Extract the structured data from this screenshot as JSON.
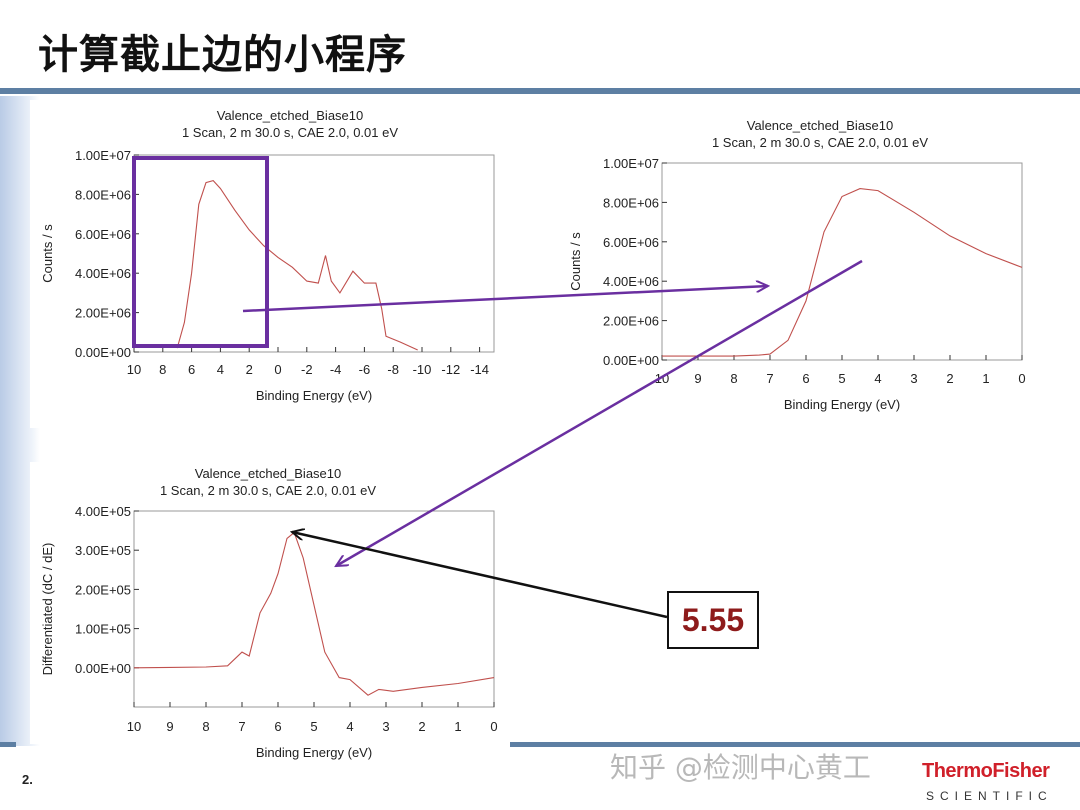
{
  "slide": {
    "title": "计算截止边的小程序",
    "page_number": "2.",
    "watermark": "知乎 @检测中心黄工",
    "logo_line1": "ThermoFisher",
    "logo_line2": "SCIENTIFIC",
    "callout_value": "5.55",
    "colors": {
      "rule": "#5d7fa3",
      "annotation_purple": "#6a2fa0",
      "curve": "#c0504d",
      "callout_text": "#8e1b1b"
    }
  },
  "chart_data": [
    {
      "type": "line",
      "title": "Valence_etched_Biase10",
      "subtitle": "1 Scan,  2 m 30.0 s,  CAE 2.0,  0.01 eV",
      "xlabel": "Binding Energy (eV)",
      "ylabel": "Counts / s",
      "xlim": [
        10,
        -15
      ],
      "ylim": [
        0,
        10000000
      ],
      "xticks": [
        10,
        8,
        6,
        4,
        2,
        0,
        -2,
        -4,
        -6,
        -8,
        -10,
        -12,
        -14
      ],
      "xtick_labels": [
        "10",
        "8",
        "6",
        "4",
        "2",
        "0",
        "-2",
        "-4",
        "-6",
        "-8",
        "-10",
        "-12",
        "-14"
      ],
      "yticks": [
        0,
        2000000,
        4000000,
        6000000,
        8000000,
        10000000
      ],
      "ytick_labels": [
        "0.00E+00",
        "2.00E+06",
        "4.00E+06",
        "6.00E+06",
        "8.00E+06",
        "1.00E+07"
      ],
      "grid": false,
      "highlight_box_x": [
        10,
        0.7
      ],
      "series": [
        {
          "x": [
            7,
            6.5,
            6,
            5.5,
            5,
            4.5,
            4,
            3,
            2,
            1,
            0,
            -1,
            -2,
            -2.8,
            -3.3,
            -3.7,
            -4.3,
            -5.2,
            -6,
            -6.8,
            -7.2,
            -7.5,
            -8.5,
            -9.7
          ],
          "y": [
            200000,
            1500000,
            4000000,
            7500000,
            8600000,
            8700000,
            8300000,
            7200000,
            6200000,
            5400000,
            4800000,
            4300000,
            3600000,
            3500000,
            4900000,
            3600000,
            3000000,
            4100000,
            3500000,
            3500000,
            2200000,
            800000,
            500000,
            100000
          ]
        }
      ]
    },
    {
      "type": "line",
      "title": "Valence_etched_Biase10",
      "subtitle": "1 Scan,  2 m 30.0 s,  CAE 2.0,  0.01 eV",
      "xlabel": "Binding Energy (eV)",
      "ylabel": "Counts / s",
      "xlim": [
        10,
        0
      ],
      "ylim": [
        0,
        10000000
      ],
      "xticks": [
        10,
        9,
        8,
        7,
        6,
        5,
        4,
        3,
        2,
        1,
        0
      ],
      "xtick_labels": [
        "10",
        "9",
        "8",
        "7",
        "6",
        "5",
        "4",
        "3",
        "2",
        "1",
        "0"
      ],
      "yticks": [
        0,
        2000000,
        4000000,
        6000000,
        8000000,
        10000000
      ],
      "ytick_labels": [
        "0.00E+00",
        "2.00E+06",
        "4.00E+06",
        "6.00E+06",
        "8.00E+06",
        "1.00E+07"
      ],
      "grid": false,
      "series": [
        {
          "x": [
            10,
            9,
            8,
            7.3,
            7,
            6.5,
            6,
            5.5,
            5,
            4.5,
            4,
            3,
            2,
            1,
            0
          ],
          "y": [
            200000,
            200000,
            200000,
            250000,
            300000,
            1000000,
            3000000,
            6500000,
            8300000,
            8700000,
            8600000,
            7500000,
            6300000,
            5400000,
            4700000
          ]
        }
      ]
    },
    {
      "type": "line",
      "title": "Valence_etched_Biase10",
      "subtitle": "1 Scan,  2 m 30.0 s,  CAE 2.0,  0.01 eV",
      "xlabel": "Binding Energy (eV)",
      "ylabel": "Differentiated (dC / dE)",
      "xlim": [
        10,
        0
      ],
      "ylim": [
        -100000,
        400000
      ],
      "xticks": [
        10,
        9,
        8,
        7,
        6,
        5,
        4,
        3,
        2,
        1,
        0
      ],
      "xtick_labels": [
        "10",
        "9",
        "8",
        "7",
        "6",
        "5",
        "4",
        "3",
        "2",
        "1",
        "0"
      ],
      "yticks": [
        0,
        100000,
        200000,
        300000,
        400000
      ],
      "ytick_labels": [
        "0.00E+00",
        "1.00E+05",
        "2.00E+05",
        "3.00E+05",
        "4.00E+05"
      ],
      "grid": false,
      "peak": {
        "x": 5.55,
        "y": 345000
      },
      "series": [
        {
          "x": [
            10,
            9,
            8,
            7.4,
            7,
            6.8,
            6.5,
            6.2,
            6,
            5.75,
            5.55,
            5.3,
            5,
            4.7,
            4.3,
            4,
            3.5,
            3.2,
            2.8,
            2,
            1,
            0
          ],
          "y": [
            0,
            1000,
            2000,
            5000,
            40000,
            30000,
            140000,
            190000,
            240000,
            330000,
            345000,
            280000,
            160000,
            40000,
            -25000,
            -30000,
            -70000,
            -55000,
            -60000,
            -50000,
            -40000,
            -25000
          ]
        }
      ]
    }
  ]
}
